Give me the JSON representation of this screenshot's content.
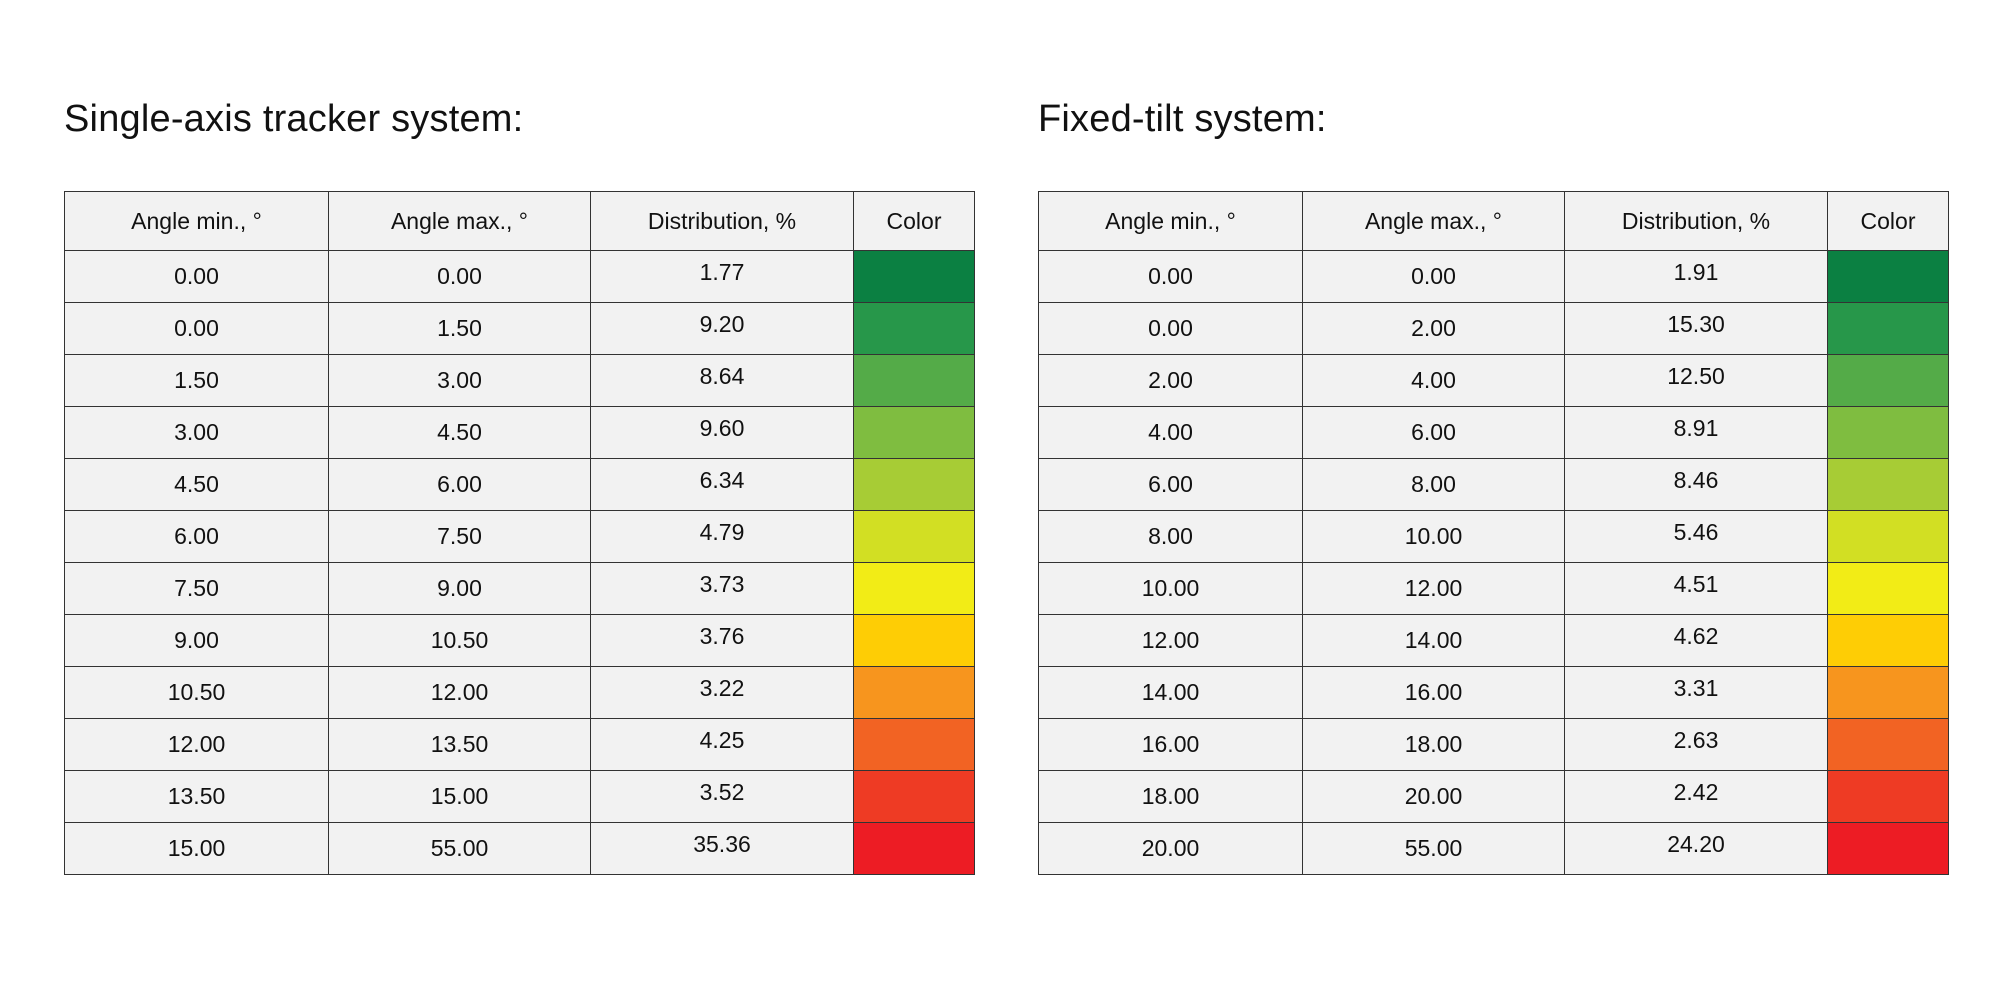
{
  "colors": [
    "#0b8042",
    "#27974a",
    "#54ab48",
    "#7fbd40",
    "#a7cc35",
    "#d2df23",
    "#f2ec16",
    "#fecd05",
    "#f7951e",
    "#f26323",
    "#ee3b24",
    "#ed1c24"
  ],
  "tables": [
    {
      "title": "Single-axis tracker system:",
      "headers": [
        "Angle min., °",
        "Angle max., °",
        "Distribution, %",
        "Color"
      ],
      "rows": [
        {
          "min": "0.00",
          "max": "0.00",
          "dist": "1.77"
        },
        {
          "min": "0.00",
          "max": "1.50",
          "dist": "9.20"
        },
        {
          "min": "1.50",
          "max": "3.00",
          "dist": "8.64"
        },
        {
          "min": "3.00",
          "max": "4.50",
          "dist": "9.60"
        },
        {
          "min": "4.50",
          "max": "6.00",
          "dist": "6.34"
        },
        {
          "min": "6.00",
          "max": "7.50",
          "dist": "4.79"
        },
        {
          "min": "7.50",
          "max": "9.00",
          "dist": "3.73"
        },
        {
          "min": "9.00",
          "max": "10.50",
          "dist": "3.76"
        },
        {
          "min": "10.50",
          "max": "12.00",
          "dist": "3.22"
        },
        {
          "min": "12.00",
          "max": "13.50",
          "dist": "4.25"
        },
        {
          "min": "13.50",
          "max": "15.00",
          "dist": "3.52"
        },
        {
          "min": "15.00",
          "max": "55.00",
          "dist": "35.36"
        }
      ]
    },
    {
      "title": "Fixed-tilt system:",
      "headers": [
        "Angle min., °",
        "Angle max., °",
        "Distribution, %",
        "Color"
      ],
      "rows": [
        {
          "min": "0.00",
          "max": "0.00",
          "dist": "1.91"
        },
        {
          "min": "0.00",
          "max": "2.00",
          "dist": "15.30"
        },
        {
          "min": "2.00",
          "max": "4.00",
          "dist": "12.50"
        },
        {
          "min": "4.00",
          "max": "6.00",
          "dist": "8.91"
        },
        {
          "min": "6.00",
          "max": "8.00",
          "dist": "8.46"
        },
        {
          "min": "8.00",
          "max": "10.00",
          "dist": "5.46"
        },
        {
          "min": "10.00",
          "max": "12.00",
          "dist": "4.51"
        },
        {
          "min": "12.00",
          "max": "14.00",
          "dist": "4.62"
        },
        {
          "min": "14.00",
          "max": "16.00",
          "dist": "3.31"
        },
        {
          "min": "16.00",
          "max": "18.00",
          "dist": "2.63"
        },
        {
          "min": "18.00",
          "max": "20.00",
          "dist": "2.42"
        },
        {
          "min": "20.00",
          "max": "55.00",
          "dist": "24.20"
        }
      ]
    }
  ]
}
